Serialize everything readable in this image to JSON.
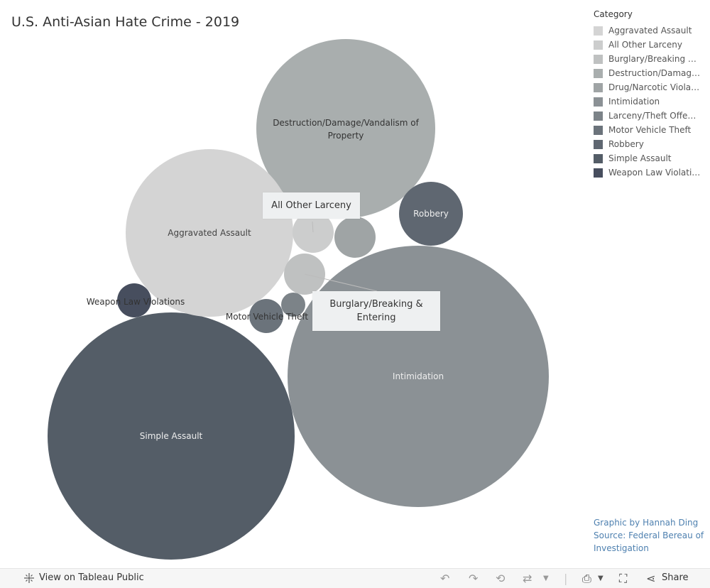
{
  "title": "U.S. Anti-Asian Hate Crime - 2019",
  "legend": {
    "title": "Category",
    "items": [
      {
        "label": "Aggravated Assault",
        "color": "#d4d4d4"
      },
      {
        "label": "All Other Larceny",
        "color": "#cccdcd"
      },
      {
        "label": "Burglary/Breaking & ...",
        "color": "#bfc1c1"
      },
      {
        "label": "Destruction/Damage...",
        "color": "#a9aeae"
      },
      {
        "label": "Drug/Narcotic Violat...",
        "color": "#9fa4a5"
      },
      {
        "label": "Intimidation",
        "color": "#8b9195"
      },
      {
        "label": "Larceny/Theft Offen...",
        "color": "#7c8388"
      },
      {
        "label": "Motor Vehicle Theft",
        "color": "#6b737b"
      },
      {
        "label": "Robbery",
        "color": "#5f6771"
      },
      {
        "label": "Simple Assault",
        "color": "#545d67"
      },
      {
        "label": "Weapon Law Violatio...",
        "color": "#474e5e"
      }
    ]
  },
  "chart_data": {
    "type": "packed-bubble",
    "bubbles": [
      {
        "category": "Intimidation",
        "label": "Intimidation",
        "relative_size": 1.0
      },
      {
        "category": "Simple Assault",
        "label": "Simple Assault",
        "relative_size": 0.89
      },
      {
        "category": "Destruction/Damage/Vandalism of Property",
        "label": "Destruction/Damage/Vandalism of Property",
        "relative_size": 0.47
      },
      {
        "category": "Aggravated Assault",
        "label": "Aggravated Assault",
        "relative_size": 0.41
      },
      {
        "category": "Robbery",
        "label": "Robbery",
        "relative_size": 0.06
      },
      {
        "category": "Drug/Narcotic Violations",
        "label": "",
        "relative_size": 0.026
      },
      {
        "category": "All Other Larceny",
        "label": "",
        "relative_size": 0.026
      },
      {
        "category": "Burglary/Breaking & Entering",
        "label": "",
        "relative_size": 0.026
      },
      {
        "category": "Motor Vehicle Theft",
        "label": "Motor Vehicle Theft",
        "relative_size": 0.017
      },
      {
        "category": "Weapon Law Violations",
        "label": "Weapon Law Violations",
        "relative_size": 0.017
      },
      {
        "category": "Larceny/Theft Offenses",
        "label": "",
        "relative_size": 0.009
      }
    ]
  },
  "callouts": [
    {
      "text": "All Other Larceny"
    },
    {
      "text": "Burglary/Breaking & Entering"
    }
  ],
  "credit": {
    "line1": "Graphic by Hannah Ding",
    "line2": "Source: Federal Bereau of",
    "line3": "Investigation"
  },
  "toolbar": {
    "view_label": "View on Tableau Public",
    "share_label": "Share"
  }
}
